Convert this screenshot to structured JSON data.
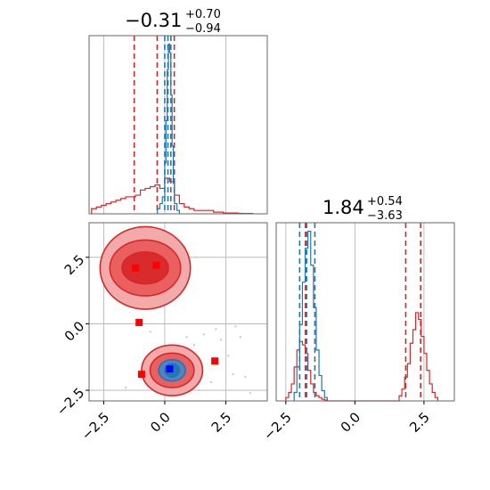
{
  "chart_data": {
    "type": "corner",
    "panels": [
      {
        "id": "hist_x",
        "type": "histogram",
        "title": {
          "median": "−0.31",
          "plus": "+0.70",
          "minus": "−0.94"
        },
        "xlim": [
          -3.1,
          4.2
        ],
        "series": [
          {
            "name": "",
            "color": "#d62728",
            "bins": [
              -3.0,
              -2.8,
              -2.6,
              -2.4,
              -2.2,
              -2.0,
              -1.8,
              -1.6,
              -1.4,
              -1.2,
              -1.0,
              -0.8,
              -0.6,
              -0.4,
              -0.2,
              0.0,
              0.2,
              0.4,
              0.6,
              0.8,
              1.0,
              1.2,
              1.4,
              1.6,
              1.8,
              2.0,
              2.2,
              2.4,
              2.6,
              2.8,
              3.0,
              3.2,
              3.4,
              3.6
            ],
            "counts": [
              0.03,
              0.04,
              0.05,
              0.06,
              0.07,
              0.08,
              0.09,
              0.1,
              0.1,
              0.11,
              0.14,
              0.15,
              0.16,
              0.17,
              0.15,
              0.21,
              0.19,
              0.11,
              0.06,
              0.04,
              0.03,
              0.02,
              0.02,
              0.02,
              0.02,
              0.01,
              0.01,
              0.005,
              0.005,
              0.005,
              0.003,
              0.002,
              0.002
            ],
            "median": -0.31,
            "lower": -1.25,
            "upper": 0.39
          },
          {
            "name": "",
            "color": "#1f77b4",
            "bins": [
              -0.3,
              -0.2,
              -0.1,
              0.0,
              0.05,
              0.1,
              0.15,
              0.2,
              0.25,
              0.3,
              0.35,
              0.4,
              0.5,
              0.6
            ],
            "counts": [
              0.03,
              0.06,
              0.1,
              0.3,
              0.55,
              0.85,
              1.0,
              0.95,
              0.7,
              0.4,
              0.18,
              0.06,
              0.02
            ],
            "median": 0.13,
            "lower": 0.0,
            "upper": 0.25
          }
        ]
      },
      {
        "id": "scatter_xy",
        "type": "2d-contour",
        "xlim": [
          -3.1,
          4.2
        ],
        "ylim": [
          -2.9,
          3.8
        ],
        "red_markers": [
          {
            "x": -1.2,
            "y": 2.1
          },
          {
            "x": -0.35,
            "y": 2.2
          },
          {
            "x": -1.05,
            "y": 0.05
          },
          {
            "x": -0.95,
            "y": -1.9
          },
          {
            "x": 2.05,
            "y": -1.4
          }
        ],
        "blue_markers": [
          {
            "x": 0.2,
            "y": -1.7
          }
        ],
        "contours": [
          {
            "cx": -0.8,
            "cy": 2.1,
            "rx": 1.85,
            "ry": 1.55,
            "fill": "#f2a5a5",
            "stroke": "#d62728"
          },
          {
            "cx": -0.8,
            "cy": 2.1,
            "rx": 1.45,
            "ry": 1.05,
            "fill": "#e95c5c",
            "stroke": "#d62728"
          },
          {
            "cx": -0.8,
            "cy": 2.1,
            "rx": 0.95,
            "ry": 0.6,
            "fill": "#d6282a",
            "stroke": "#d62728"
          },
          {
            "cx": 0.3,
            "cy": -1.75,
            "rx": 1.25,
            "ry": 0.95,
            "fill": "#f2a5a5",
            "stroke": "#d62728"
          },
          {
            "cx": 0.3,
            "cy": -1.75,
            "rx": 0.9,
            "ry": 0.65,
            "fill": "#e95c5c",
            "stroke": "#d62728"
          },
          {
            "cx": 0.3,
            "cy": -1.75,
            "rx": 0.55,
            "ry": 0.4,
            "fill": "#4f83c4",
            "stroke": "#1f77b4"
          },
          {
            "cx": 0.3,
            "cy": -1.75,
            "rx": 0.3,
            "ry": 0.25,
            "fill": "#1f77b4",
            "stroke": "#1f77b4"
          }
        ]
      },
      {
        "id": "hist_y",
        "type": "histogram",
        "title": {
          "median": "1.84",
          "plus": "+0.54",
          "minus": "−3.63"
        },
        "xlim": [
          -2.85,
          3.6
        ],
        "series": [
          {
            "name": "",
            "color": "#d62728",
            "bins": [
              -2.5,
              -2.4,
              -2.3,
              -2.2,
              -2.1,
              -2.0,
              -1.9,
              -1.8,
              -1.7,
              -1.6,
              -1.5,
              -1.4,
              -1.3,
              -1.2,
              -1.1,
              -1.0,
              1.6,
              1.7,
              1.8,
              1.9,
              2.0,
              2.1,
              2.2,
              2.3,
              2.4,
              2.5,
              2.6,
              2.7,
              2.8,
              2.9,
              3.0
            ],
            "counts": [
              0.02,
              0.05,
              0.1,
              0.2,
              0.3,
              0.35,
              0.33,
              0.28,
              0.18,
              0.1,
              0.05,
              0.03,
              0.02,
              0.01,
              0.005,
              0.0,
              0.03,
              0.07,
              0.14,
              0.22,
              0.34,
              0.42,
              0.52,
              0.48,
              0.38,
              0.28,
              0.18,
              0.1,
              0.05,
              0.02
            ],
            "median": 1.84,
            "lower": -1.79,
            "upper": 2.38
          },
          {
            "name": "",
            "color": "#1f77b4",
            "bins": [
              -2.2,
              -2.1,
              -2.0,
              -1.9,
              -1.8,
              -1.7,
              -1.6,
              -1.5,
              -1.4,
              -1.3,
              -1.2,
              -1.1,
              -1.0
            ],
            "counts": [
              0.05,
              0.2,
              0.45,
              0.7,
              0.9,
              1.0,
              0.8,
              0.55,
              0.3,
              0.15,
              0.06,
              0.02
            ],
            "median": -1.75,
            "lower": -2.0,
            "upper": -1.45
          }
        ]
      }
    ],
    "x_ticks_left": [
      "−2.5",
      "0.0",
      "2.5"
    ],
    "y_ticks_left": [
      "−2.5",
      "0.0",
      "2.5"
    ],
    "x_ticks_right": [
      "−2.5",
      "0.0",
      "2.5"
    ],
    "grid": true
  }
}
